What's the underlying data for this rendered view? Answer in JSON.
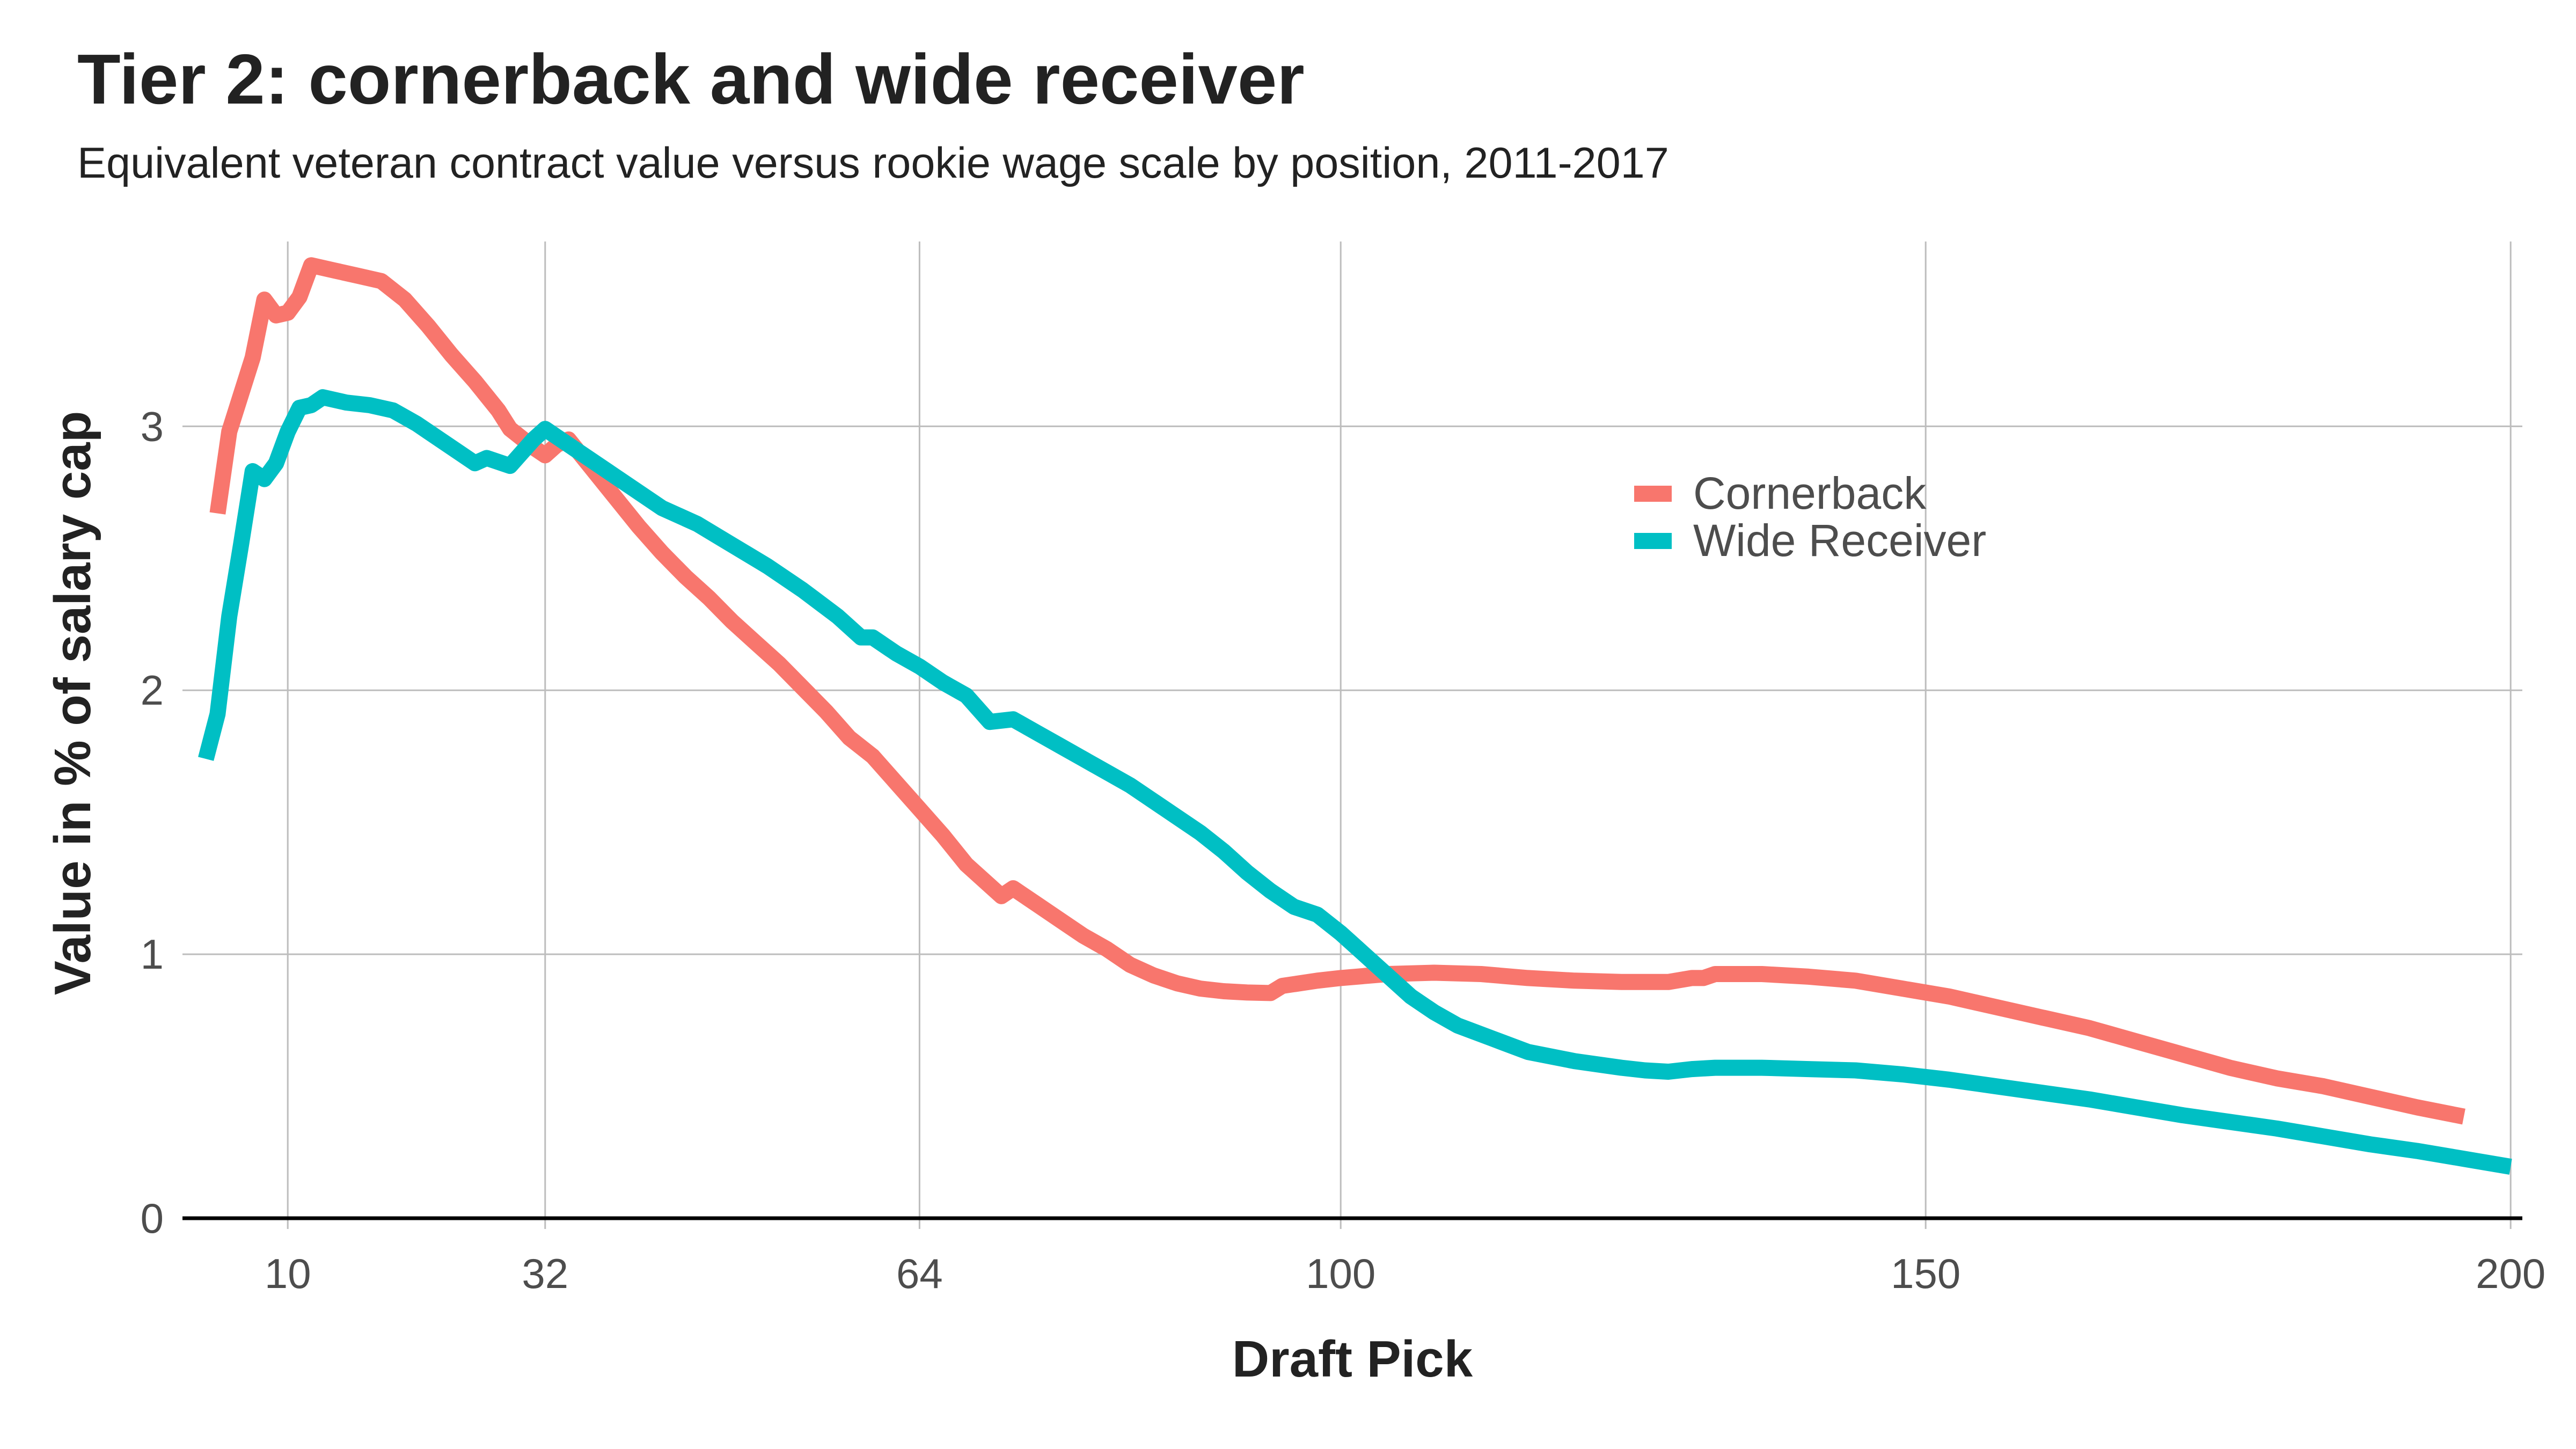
{
  "chart_data": {
    "type": "line",
    "title": "Tier 2: cornerback and wide receiver",
    "subtitle": "Equivalent veteran contract value versus rookie wage scale by position, 2011-2017",
    "xlabel": "Draft Pick",
    "ylabel": "Value in % of salary cap",
    "xlim": [
      1,
      201
    ],
    "ylim": [
      0,
      3.7
    ],
    "x_ticks": [
      10,
      32,
      64,
      100,
      150,
      200
    ],
    "y_ticks": [
      0,
      1,
      2,
      3
    ],
    "grid": true,
    "legend_position": "top-right",
    "series": [
      {
        "name": "Cornerback",
        "color": "#F8766D",
        "points": [
          [
            4,
            2.67
          ],
          [
            5,
            2.98
          ],
          [
            7,
            3.26
          ],
          [
            8,
            3.48
          ],
          [
            9,
            3.42
          ],
          [
            10,
            3.43
          ],
          [
            11,
            3.49
          ],
          [
            12,
            3.61
          ],
          [
            14,
            3.59
          ],
          [
            16,
            3.57
          ],
          [
            18,
            3.55
          ],
          [
            20,
            3.48
          ],
          [
            22,
            3.38
          ],
          [
            24,
            3.27
          ],
          [
            26,
            3.17
          ],
          [
            28,
            3.06
          ],
          [
            29,
            2.99
          ],
          [
            31,
            2.92
          ],
          [
            32,
            2.89
          ],
          [
            33,
            2.93
          ],
          [
            34,
            2.95
          ],
          [
            36,
            2.84
          ],
          [
            38,
            2.73
          ],
          [
            40,
            2.62
          ],
          [
            42,
            2.52
          ],
          [
            44,
            2.43
          ],
          [
            46,
            2.35
          ],
          [
            48,
            2.26
          ],
          [
            50,
            2.18
          ],
          [
            52,
            2.1
          ],
          [
            54,
            2.01
          ],
          [
            56,
            1.92
          ],
          [
            58,
            1.82
          ],
          [
            60,
            1.75
          ],
          [
            62,
            1.65
          ],
          [
            64,
            1.55
          ],
          [
            66,
            1.45
          ],
          [
            68,
            1.34
          ],
          [
            70,
            1.26
          ],
          [
            71,
            1.22
          ],
          [
            72,
            1.25
          ],
          [
            74,
            1.19
          ],
          [
            76,
            1.13
          ],
          [
            78,
            1.07
          ],
          [
            80,
            1.02
          ],
          [
            82,
            0.96
          ],
          [
            84,
            0.92
          ],
          [
            86,
            0.89
          ],
          [
            88,
            0.87
          ],
          [
            90,
            0.86
          ],
          [
            92,
            0.855
          ],
          [
            94,
            0.853
          ],
          [
            95,
            0.88
          ],
          [
            98,
            0.9
          ],
          [
            100,
            0.91
          ],
          [
            104,
            0.925
          ],
          [
            108,
            0.93
          ],
          [
            112,
            0.925
          ],
          [
            116,
            0.91
          ],
          [
            120,
            0.9
          ],
          [
            124,
            0.895
          ],
          [
            128,
            0.895
          ],
          [
            130,
            0.91
          ],
          [
            131,
            0.91
          ],
          [
            132,
            0.925
          ],
          [
            136,
            0.925
          ],
          [
            140,
            0.915
          ],
          [
            144,
            0.9
          ],
          [
            148,
            0.87
          ],
          [
            152,
            0.84
          ],
          [
            156,
            0.8
          ],
          [
            160,
            0.76
          ],
          [
            164,
            0.72
          ],
          [
            168,
            0.67
          ],
          [
            172,
            0.62
          ],
          [
            176,
            0.57
          ],
          [
            180,
            0.53
          ],
          [
            184,
            0.5
          ],
          [
            188,
            0.46
          ],
          [
            192,
            0.42
          ],
          [
            196,
            0.385
          ]
        ]
      },
      {
        "name": "Wide Receiver",
        "color": "#00BFC4",
        "points": [
          [
            3,
            1.74
          ],
          [
            4,
            1.91
          ],
          [
            5,
            2.28
          ],
          [
            6,
            2.55
          ],
          [
            7,
            2.83
          ],
          [
            8,
            2.8
          ],
          [
            9,
            2.86
          ],
          [
            10,
            2.98
          ],
          [
            11,
            3.07
          ],
          [
            12,
            3.08
          ],
          [
            13,
            3.11
          ],
          [
            15,
            3.09
          ],
          [
            17,
            3.08
          ],
          [
            19,
            3.06
          ],
          [
            21,
            3.01
          ],
          [
            22,
            2.98
          ],
          [
            24,
            2.92
          ],
          [
            26,
            2.86
          ],
          [
            27,
            2.88
          ],
          [
            29,
            2.85
          ],
          [
            31,
            2.95
          ],
          [
            32,
            2.99
          ],
          [
            33,
            2.96
          ],
          [
            35,
            2.9
          ],
          [
            38,
            2.81
          ],
          [
            40,
            2.75
          ],
          [
            42,
            2.69
          ],
          [
            45,
            2.63
          ],
          [
            48,
            2.55
          ],
          [
            51,
            2.47
          ],
          [
            54,
            2.38
          ],
          [
            57,
            2.28
          ],
          [
            59,
            2.2
          ],
          [
            60,
            2.2
          ],
          [
            62,
            2.14
          ],
          [
            64,
            2.09
          ],
          [
            66,
            2.03
          ],
          [
            68,
            1.98
          ],
          [
            70,
            1.88
          ],
          [
            72,
            1.89
          ],
          [
            74,
            1.84
          ],
          [
            76,
            1.79
          ],
          [
            78,
            1.74
          ],
          [
            80,
            1.69
          ],
          [
            82,
            1.64
          ],
          [
            84,
            1.58
          ],
          [
            86,
            1.52
          ],
          [
            88,
            1.46
          ],
          [
            90,
            1.39
          ],
          [
            92,
            1.31
          ],
          [
            94,
            1.24
          ],
          [
            96,
            1.18
          ],
          [
            98,
            1.15
          ],
          [
            100,
            1.08
          ],
          [
            102,
            1.0
          ],
          [
            104,
            0.92
          ],
          [
            106,
            0.84
          ],
          [
            108,
            0.78
          ],
          [
            110,
            0.73
          ],
          [
            113,
            0.68
          ],
          [
            116,
            0.63
          ],
          [
            120,
            0.595
          ],
          [
            124,
            0.57
          ],
          [
            126,
            0.56
          ],
          [
            128,
            0.555
          ],
          [
            130,
            0.565
          ],
          [
            132,
            0.57
          ],
          [
            136,
            0.57
          ],
          [
            140,
            0.565
          ],
          [
            144,
            0.56
          ],
          [
            148,
            0.545
          ],
          [
            152,
            0.525
          ],
          [
            156,
            0.5
          ],
          [
            160,
            0.475
          ],
          [
            164,
            0.45
          ],
          [
            168,
            0.42
          ],
          [
            172,
            0.39
          ],
          [
            176,
            0.365
          ],
          [
            180,
            0.34
          ],
          [
            184,
            0.31
          ],
          [
            188,
            0.28
          ],
          [
            192,
            0.255
          ],
          [
            196,
            0.225
          ],
          [
            200,
            0.195
          ]
        ]
      }
    ]
  }
}
